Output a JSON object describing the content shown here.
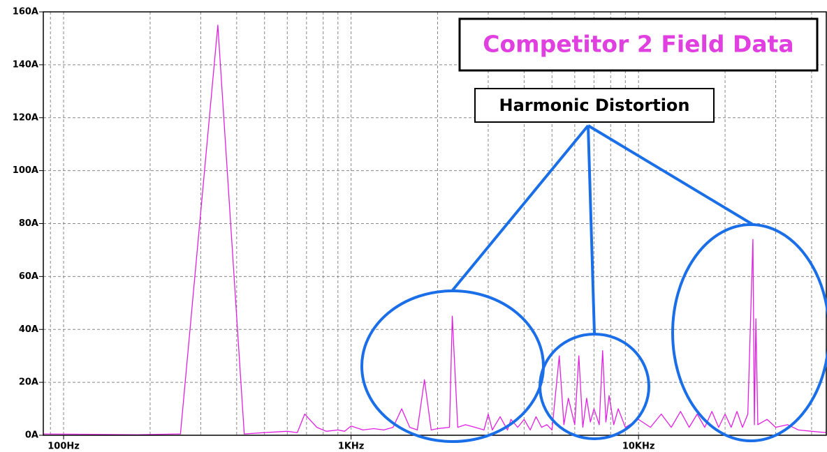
{
  "chart_data": {
    "type": "line",
    "title": "Competitor 2 Field Data",
    "annotation": "Harmonic Distortion",
    "xscale": "log",
    "grid": true,
    "xlim": [
      85,
      45000
    ],
    "xticks": [
      {
        "value": 100,
        "label": "100Hz"
      },
      {
        "value": 1000,
        "label": "1KHz"
      },
      {
        "value": 10000,
        "label": "10KHz"
      }
    ],
    "minor_xticks": [
      90,
      200,
      300,
      400,
      500,
      600,
      700,
      800,
      900,
      2000,
      3000,
      4000,
      5000,
      6000,
      7000,
      8000,
      9000,
      20000,
      30000,
      40000
    ],
    "ylim": [
      0,
      160
    ],
    "yticks": [
      {
        "value": 0,
        "label": "0A"
      },
      {
        "value": 20,
        "label": "20A"
      },
      {
        "value": 40,
        "label": "40A"
      },
      {
        "value": 60,
        "label": "60A"
      },
      {
        "value": 80,
        "label": "80A"
      },
      {
        "value": 100,
        "label": "100A"
      },
      {
        "value": 120,
        "label": "120A"
      },
      {
        "value": 140,
        "label": "140A"
      },
      {
        "value": 160,
        "label": "160A"
      }
    ],
    "x": [
      85,
      140,
      180,
      255,
      344,
      425,
      500,
      600,
      650,
      690,
      760,
      820,
      900,
      950,
      1000,
      1100,
      1200,
      1300,
      1400,
      1500,
      1600,
      1700,
      1800,
      1900,
      2000,
      2200,
      2250,
      2350,
      2500,
      2700,
      2900,
      3000,
      3100,
      3300,
      3500,
      3600,
      3800,
      4000,
      4200,
      4400,
      4600,
      4800,
      5000,
      5300,
      5500,
      5700,
      6000,
      6200,
      6400,
      6600,
      6800,
      7000,
      7300,
      7500,
      7700,
      7900,
      8200,
      8500,
      9000,
      10000,
      11000,
      12000,
      13000,
      14000,
      15000,
      16000,
      17000,
      18000,
      19000,
      20000,
      21000,
      22000,
      23000,
      24000,
      25000,
      25300,
      25600,
      26000,
      28000,
      30000,
      33000,
      36000,
      40000,
      45000
    ],
    "series": [
      {
        "color": "#e020e0",
        "values": [
          0.5,
          0.3,
          0.2,
          0.5,
          155,
          0.5,
          1,
          1.5,
          1,
          8,
          3,
          1.5,
          2,
          1.5,
          3.5,
          2,
          2.5,
          2,
          3,
          10,
          3,
          2,
          21,
          2,
          2.5,
          3,
          45,
          3,
          4,
          3,
          2,
          8,
          2,
          7,
          2,
          6,
          3,
          6,
          2,
          7,
          3,
          4,
          2,
          30,
          4,
          14,
          4,
          30,
          3,
          14,
          5,
          10,
          4,
          32,
          5,
          15,
          4,
          10,
          3,
          6,
          3,
          8,
          3,
          9,
          3,
          8,
          3,
          9,
          3,
          8,
          3,
          9,
          3,
          8,
          74,
          4,
          44,
          4,
          6,
          3,
          4,
          2,
          1.5,
          1
        ]
      }
    ]
  }
}
